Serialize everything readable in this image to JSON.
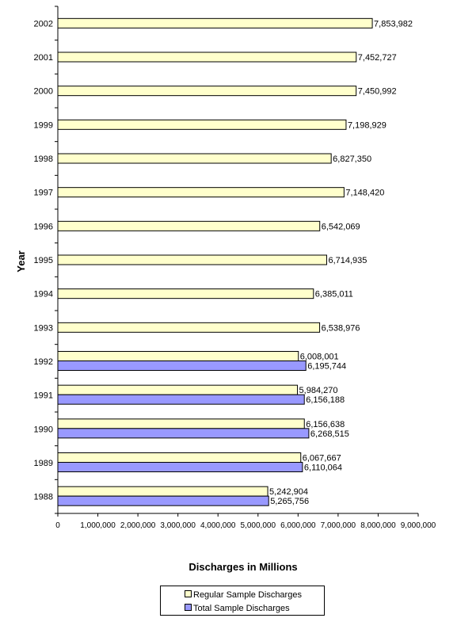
{
  "chart_data": {
    "type": "bar",
    "orientation": "horizontal",
    "xlabel": "Discharges in Millions",
    "ylabel": "Year",
    "xlim": [
      0,
      9000000
    ],
    "xticks": [
      "0",
      "1,000,000",
      "2,000,000",
      "3,000,000",
      "4,000,000",
      "5,000,000",
      "6,000,000",
      "7,000,000",
      "8,000,000",
      "9,000,000"
    ],
    "categories": [
      "2002",
      "2001",
      "2000",
      "1999",
      "1998",
      "1997",
      "1996",
      "1995",
      "1994",
      "1993",
      "1992",
      "1991",
      "1990",
      "1989",
      "1988"
    ],
    "series": [
      {
        "name": "Regular Sample Discharges",
        "color": "#ffffcc",
        "values": [
          7853982,
          7452727,
          7450992,
          7198929,
          6827350,
          7148420,
          6542069,
          6714935,
          6385011,
          6538976,
          6008001,
          5984270,
          6156638,
          6067667,
          5242904
        ],
        "labels": [
          "7,853,982",
          "7,452,727",
          "7,450,992",
          "7,198,929",
          "6,827,350",
          "7,148,420",
          "6,542,069",
          "6,714,935",
          "6,385,011",
          "6,538,976",
          "6,008,001",
          "5,984,270",
          "6,156,638",
          "6,067,667",
          "5,242,904"
        ]
      },
      {
        "name": "Total Sample Discharges",
        "color": "#9999ff",
        "values": [
          null,
          null,
          null,
          null,
          null,
          null,
          null,
          null,
          null,
          null,
          6195744,
          6156188,
          6268515,
          6110064,
          5265756
        ],
        "labels": [
          null,
          null,
          null,
          null,
          null,
          null,
          null,
          null,
          null,
          null,
          "6,195,744",
          "6,156,188",
          "6,268,515",
          "6,110,064",
          "5,265,756"
        ]
      }
    ],
    "grid": false,
    "legend": "bottom-center"
  }
}
